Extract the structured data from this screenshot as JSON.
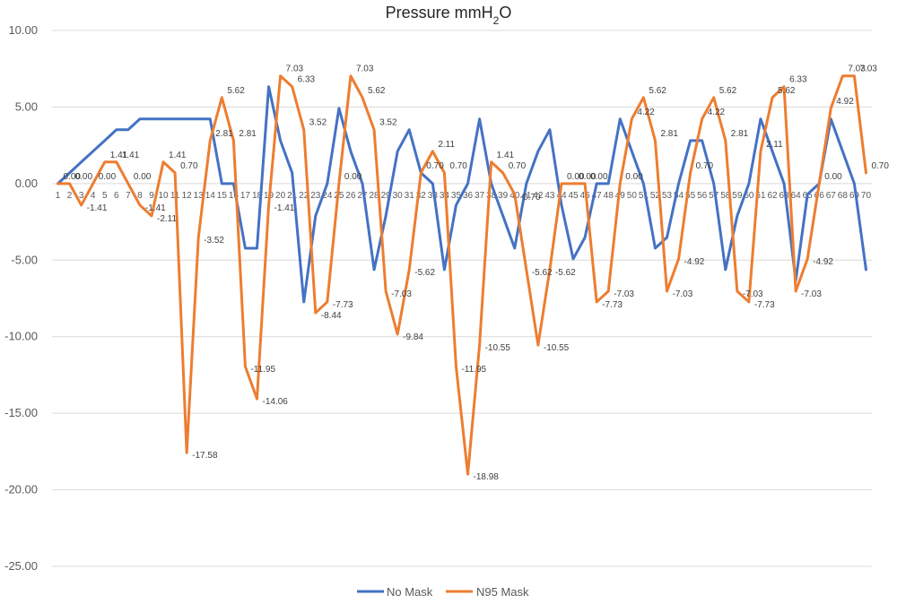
{
  "chart_data": {
    "type": "line",
    "title_main": "Pressure mmH",
    "title_sub": "2",
    "title_end": "O",
    "x": [
      1,
      2,
      3,
      4,
      5,
      6,
      7,
      8,
      9,
      10,
      11,
      12,
      13,
      14,
      15,
      16,
      17,
      18,
      19,
      20,
      21,
      22,
      23,
      24,
      25,
      26,
      27,
      28,
      29,
      30,
      31,
      32,
      33,
      34,
      35,
      36,
      37,
      38,
      39,
      40,
      41,
      42,
      43,
      44,
      45,
      46,
      47,
      48,
      49,
      50,
      51,
      52,
      53,
      54,
      55,
      56,
      57,
      58,
      59,
      60,
      61,
      62,
      63,
      64,
      65,
      66,
      67,
      68,
      69,
      70
    ],
    "ylim": [
      -25,
      10
    ],
    "yticks": [
      "10.00",
      "5.00",
      "0.00",
      "-5.00",
      "-10.00",
      "-15.00",
      "-20.00",
      "-25.00"
    ],
    "ytick_values": [
      10,
      5,
      0,
      -5,
      -10,
      -15,
      -20,
      -25
    ],
    "grid": true,
    "legend_position": "bottom",
    "series": [
      {
        "name": "No Mask",
        "color": "#4472c4",
        "values": [
          0,
          0.7,
          1.41,
          2.11,
          2.81,
          3.52,
          3.52,
          4.22,
          4.22,
          4.22,
          4.22,
          4.22,
          4.22,
          4.22,
          0,
          0,
          -4.22,
          -4.22,
          6.33,
          2.81,
          0.7,
          -7.73,
          -2.11,
          0,
          4.92,
          2.11,
          0,
          -5.62,
          -2.11,
          2.11,
          3.52,
          0.7,
          0,
          -5.62,
          -1.41,
          0,
          4.22,
          0,
          -2.11,
          -4.22,
          0,
          2.11,
          3.52,
          -1.41,
          -4.92,
          -3.52,
          0,
          0,
          4.22,
          2.11,
          0,
          -4.22,
          -3.52,
          0,
          2.81,
          2.81,
          0,
          -5.62,
          -2.11,
          0,
          4.22,
          2.11,
          0,
          -6.33,
          -0.7,
          0,
          4.22,
          2.11,
          0,
          -5.62
        ],
        "labels": []
      },
      {
        "name": "N95 Mask",
        "color": "#ed7d31",
        "values": [
          0,
          0,
          -1.41,
          0,
          1.41,
          1.41,
          0,
          -1.41,
          -2.11,
          1.41,
          0.7,
          -17.58,
          -3.52,
          2.81,
          5.62,
          2.81,
          -11.95,
          -14.06,
          -1.41,
          7.03,
          6.33,
          3.52,
          -8.44,
          -7.73,
          0,
          7.03,
          5.62,
          3.52,
          -7.03,
          -9.84,
          -5.62,
          0.7,
          2.11,
          0.7,
          -11.95,
          -18.98,
          -10.55,
          1.41,
          0.7,
          -0.7,
          -5.62,
          -10.55,
          -5.62,
          0,
          0,
          0,
          -7.73,
          -7.03,
          0,
          4.22,
          5.62,
          2.81,
          -7.03,
          -4.92,
          0.7,
          4.22,
          5.62,
          2.81,
          -7.03,
          -7.73,
          2.11,
          5.62,
          6.33,
          -7.03,
          -4.92,
          0,
          4.92,
          7.03,
          7.03,
          0.7
        ],
        "labels": [
          "0.00",
          "0.00",
          "-1.41",
          "0.00",
          "1.41",
          "1.41",
          "0.00",
          "-1.41",
          "-2.11",
          "1.41",
          "0.70",
          "-17.58",
          "-3.52",
          "2.81",
          "5.62",
          "2.81",
          "-11.95",
          "-14.06",
          "-1.41",
          "7.03",
          "6.33",
          "3.52",
          "-8.44",
          "-7.73",
          "0.00",
          "7.03",
          "5.62",
          "3.52",
          "-7.03",
          "-9.84",
          "-5.62",
          "0.70",
          "2.11",
          "0.70",
          "-11.95",
          "-18.98",
          "-10.55",
          "1.41",
          "0.70",
          "-0.70",
          "-5.62",
          "-10.55",
          "-5.62",
          "0.00",
          "0.00",
          "0.00",
          "-7.73",
          "-7.03",
          "0.00",
          "4.22",
          "5.62",
          "2.81",
          "-7.03",
          "-4.92",
          "0.70",
          "4.22",
          "5.62",
          "2.81",
          "-7.03",
          "-7.73",
          "2.11",
          "5.62",
          "6.33",
          "-7.03",
          "-4.92",
          "0.00",
          "4.92",
          "7.03",
          "7.03",
          "0.70"
        ]
      }
    ]
  }
}
